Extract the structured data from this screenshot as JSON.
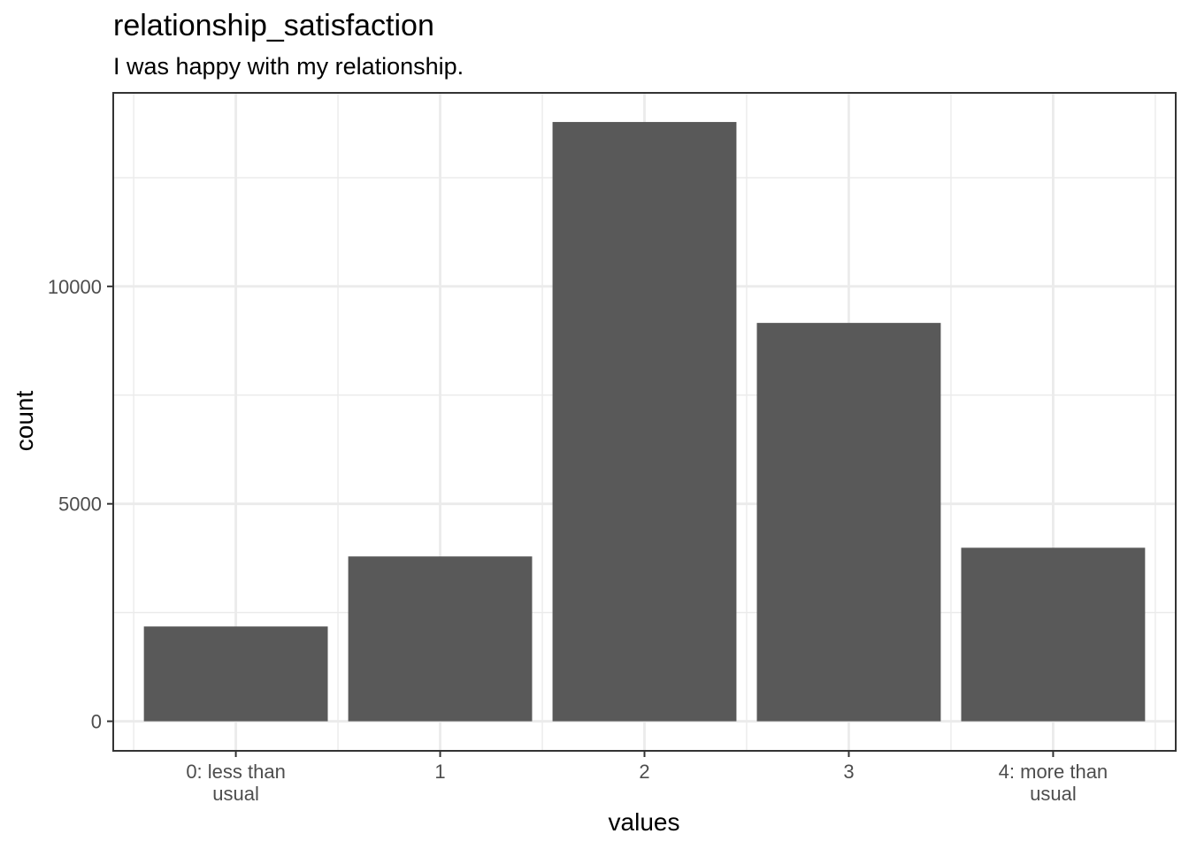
{
  "chart_data": {
    "type": "bar",
    "title": "relationship_satisfaction",
    "subtitle": "I was happy with my relationship.",
    "xlabel": "values",
    "ylabel": "count",
    "categories": [
      [
        "0: less than",
        "usual"
      ],
      [
        "1"
      ],
      [
        "2"
      ],
      [
        "3"
      ],
      [
        "4: more than",
        "usual"
      ]
    ],
    "values": [
      2180,
      3790,
      13780,
      9160,
      3990
    ],
    "ylim": [
      -680,
      14450
    ],
    "yticks": [
      0,
      5000,
      10000
    ],
    "ytick_labels": [
      "0",
      "5000",
      "10000"
    ],
    "grid": true,
    "colors": {
      "bar": "#595959",
      "grid": "#ebebeb",
      "panel_border": "#333333"
    }
  }
}
